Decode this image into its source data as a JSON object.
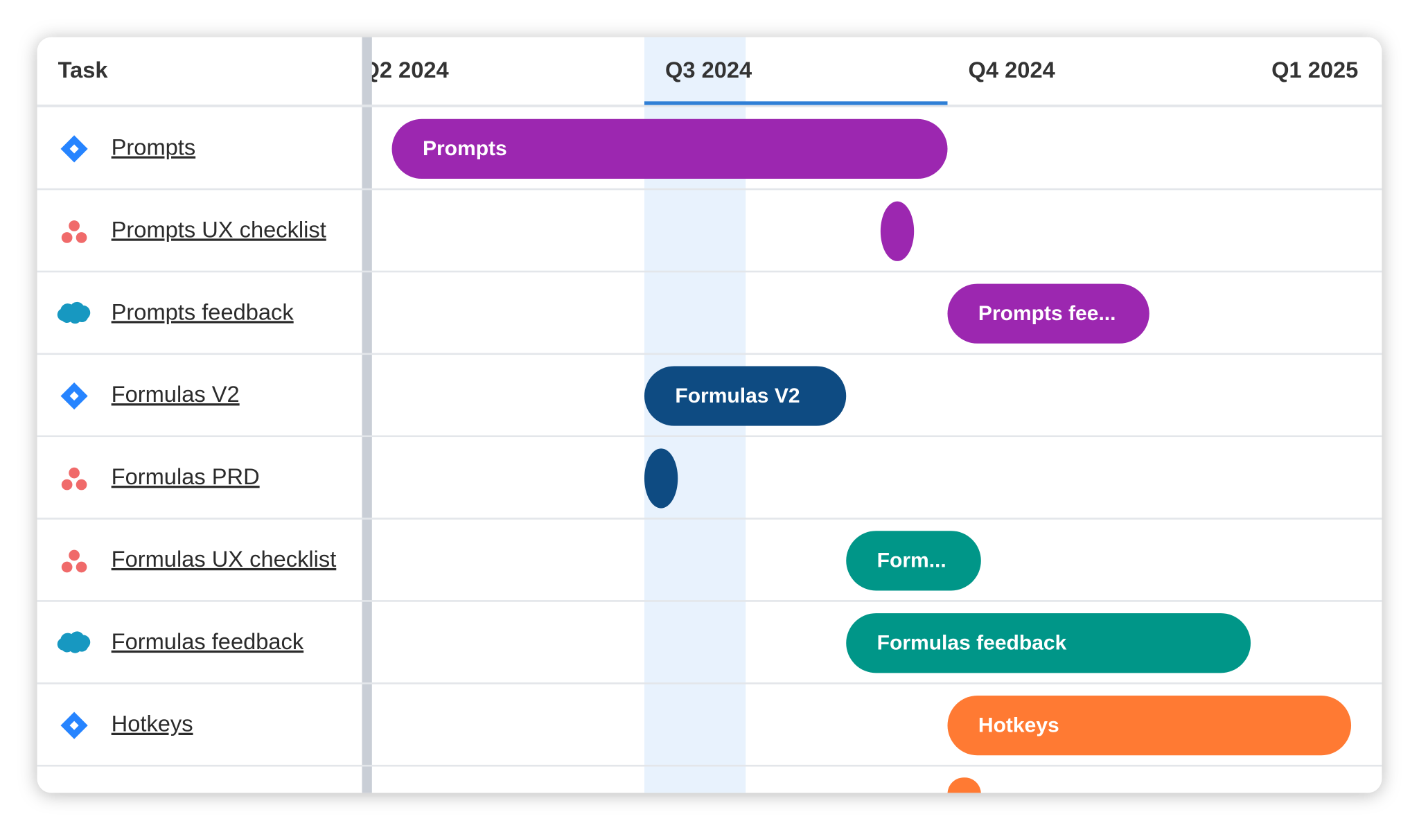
{
  "header": {
    "task": "Task",
    "quarters": [
      "Q2 2024",
      "Q3 2024",
      "Q4 2024",
      "Q1 2025"
    ]
  },
  "rows": [
    {
      "task": "Prompts",
      "bar_label": "Prompts"
    },
    {
      "task": "Prompts UX checklist"
    },
    {
      "task": "Prompts feedback",
      "bar_label": "Prompts fee..."
    },
    {
      "task": "Formulas V2",
      "bar_label": "Formulas V2"
    },
    {
      "task": "Formulas PRD"
    },
    {
      "task": "Formulas UX checklist",
      "bar_label": "Form..."
    },
    {
      "task": "Formulas feedback",
      "bar_label": "Formulas feedback"
    },
    {
      "task": "Hotkeys",
      "bar_label": "Hotkeys"
    }
  ]
}
